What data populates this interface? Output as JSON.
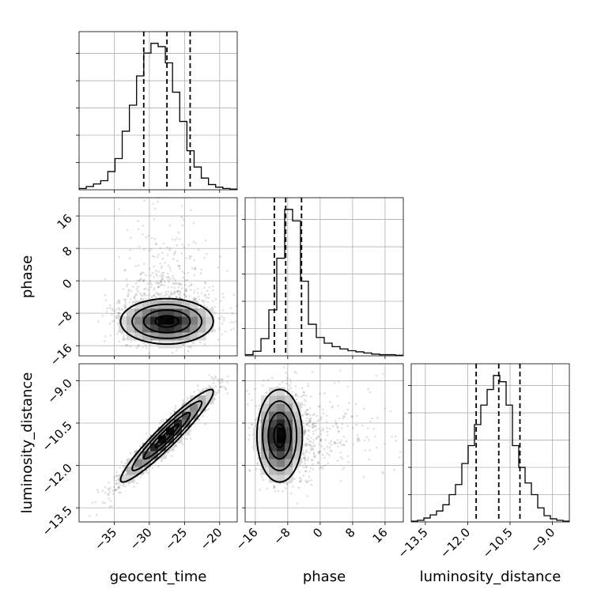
{
  "chart_data": {
    "type": "corner",
    "parameters": [
      "geocent_time",
      "phase",
      "luminosity_distance"
    ],
    "ranges": {
      "geocent_time": [
        -40,
        -17.5
      ],
      "phase": [
        -18.5,
        20.5
      ],
      "luminosity_distance": [
        -14.0,
        -8.4
      ]
    },
    "ticks": {
      "geocent_time": [
        -35,
        -30,
        -25,
        -20
      ],
      "phase": [
        -16,
        -8,
        0,
        8,
        16
      ],
      "luminosity_distance": [
        -13.5,
        -12.0,
        -10.5,
        -9.0
      ]
    },
    "tick_labels": {
      "geocent_time": [
        "−35",
        "−30",
        "−25",
        "−20"
      ],
      "phase": [
        "−16",
        "−8",
        "0",
        "8",
        "16"
      ],
      "luminosity_distance": [
        "−13.5",
        "−12.0",
        "−10.5",
        "−9.0"
      ]
    },
    "quantiles": {
      "geocent_time": [
        -30.8,
        -27.5,
        -24.2
      ],
      "phase": [
        -11.3,
        -8.5,
        -4.6
      ],
      "luminosity_distance": [
        -11.7,
        -10.9,
        -10.15
      ]
    },
    "histograms": {
      "geocent_time": {
        "start": -40,
        "end": -17.5,
        "counts": [
          2,
          5,
          9,
          14,
          28,
          48,
          90,
          130,
          175,
          210,
          225,
          220,
          195,
          150,
          105,
          60,
          35,
          18,
          8,
          4,
          2,
          1
        ]
      },
      "phase": {
        "start": -18.5,
        "end": 20.5,
        "counts": [
          2,
          8,
          30,
          80,
          170,
          255,
          235,
          130,
          55,
          32,
          22,
          16,
          12,
          9,
          7,
          5,
          3,
          2,
          2,
          1
        ]
      },
      "luminosity_distance": {
        "start": -14.0,
        "end": -8.4,
        "counts": [
          1,
          2,
          5,
          9,
          14,
          22,
          35,
          48,
          75,
          98,
          125,
          150,
          170,
          188,
          180,
          150,
          98,
          70,
          50,
          35,
          18,
          8,
          4,
          2,
          1
        ]
      }
    },
    "correlations": {
      "phase_vs_geocent_time": {
        "center": [
          -27.5,
          -10
        ],
        "sigma": [
          3.3,
          2.8
        ],
        "rho": 0.0
      },
      "luminosity_distance_vs_geocent_time": {
        "center": [
          -27.5,
          -10.95
        ],
        "sigma": [
          3.3,
          0.82
        ],
        "rho": 0.95
      },
      "luminosity_distance_vs_phase": {
        "center": [
          -10,
          -10.95
        ],
        "sigma": [
          2.8,
          0.82
        ],
        "rho": 0.0
      }
    },
    "scatter_samples": 1500,
    "contour_levels": [
      0.5,
      1.0,
      1.5,
      2.0
    ]
  }
}
